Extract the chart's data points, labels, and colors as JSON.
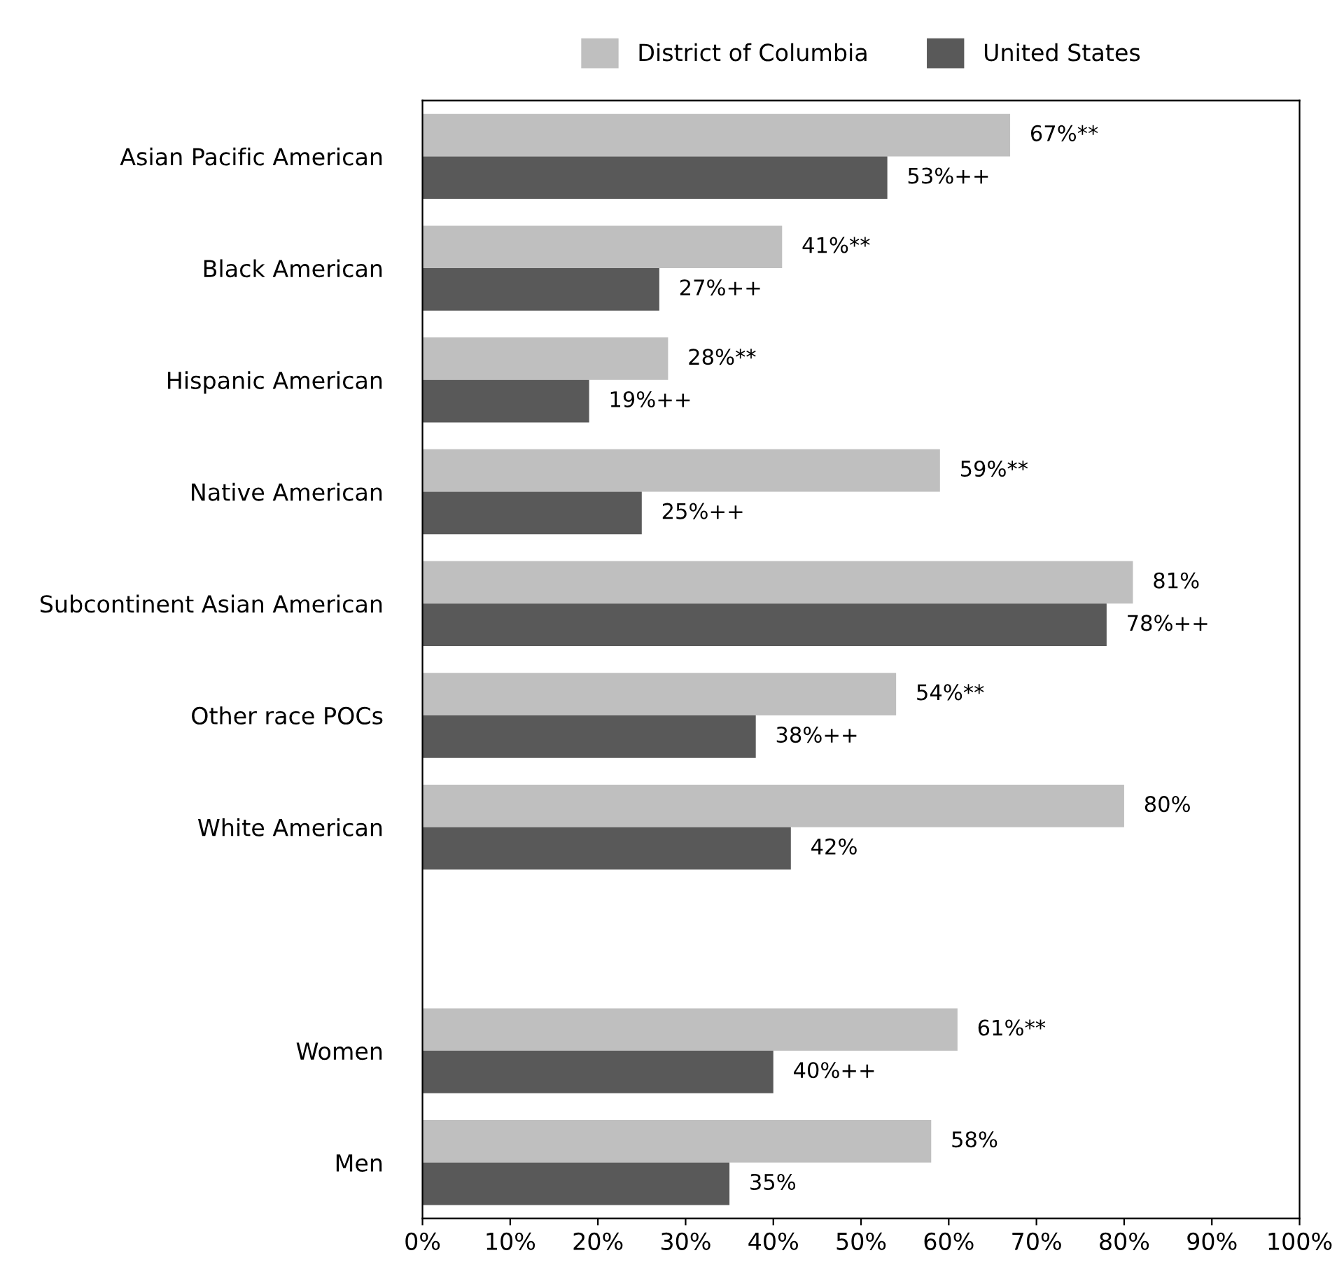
{
  "chart_data": {
    "type": "bar",
    "orientation": "horizontal",
    "categories": [
      "Asian Pacific American",
      "Black American",
      "Hispanic American",
      "Native American",
      "Subcontinent Asian American",
      "Other race POCs",
      "White American",
      null,
      "Women",
      "Men"
    ],
    "series": [
      {
        "name": "District of Columbia",
        "color": "#bfbfbf",
        "values": [
          67,
          41,
          28,
          59,
          81,
          54,
          80,
          null,
          61,
          58
        ],
        "value_labels": [
          "67%**",
          "41%**",
          "28%**",
          "59%**",
          "81%",
          "54%**",
          "80%",
          null,
          "61%**",
          "58%"
        ]
      },
      {
        "name": "United States",
        "color": "#595959",
        "values": [
          53,
          27,
          19,
          25,
          78,
          38,
          42,
          null,
          40,
          35
        ],
        "value_labels": [
          "53%++",
          "27%++",
          "19%++",
          "25%++",
          "78%++",
          "38%++",
          "42%",
          null,
          "40%++",
          "35%"
        ]
      }
    ],
    "xlim": [
      0,
      100
    ],
    "xticks": [
      {
        "value": 0,
        "label": "0%"
      },
      {
        "value": 10,
        "label": "10%"
      },
      {
        "value": 20,
        "label": "20%"
      },
      {
        "value": 30,
        "label": "30%"
      },
      {
        "value": 40,
        "label": "40%"
      },
      {
        "value": 50,
        "label": "50%"
      },
      {
        "value": 60,
        "label": "60%"
      },
      {
        "value": 70,
        "label": "70%"
      },
      {
        "value": 80,
        "label": "80%"
      },
      {
        "value": 90,
        "label": "90%"
      },
      {
        "value": 100,
        "label": "100%"
      }
    ],
    "grid": false,
    "legend": "top"
  }
}
